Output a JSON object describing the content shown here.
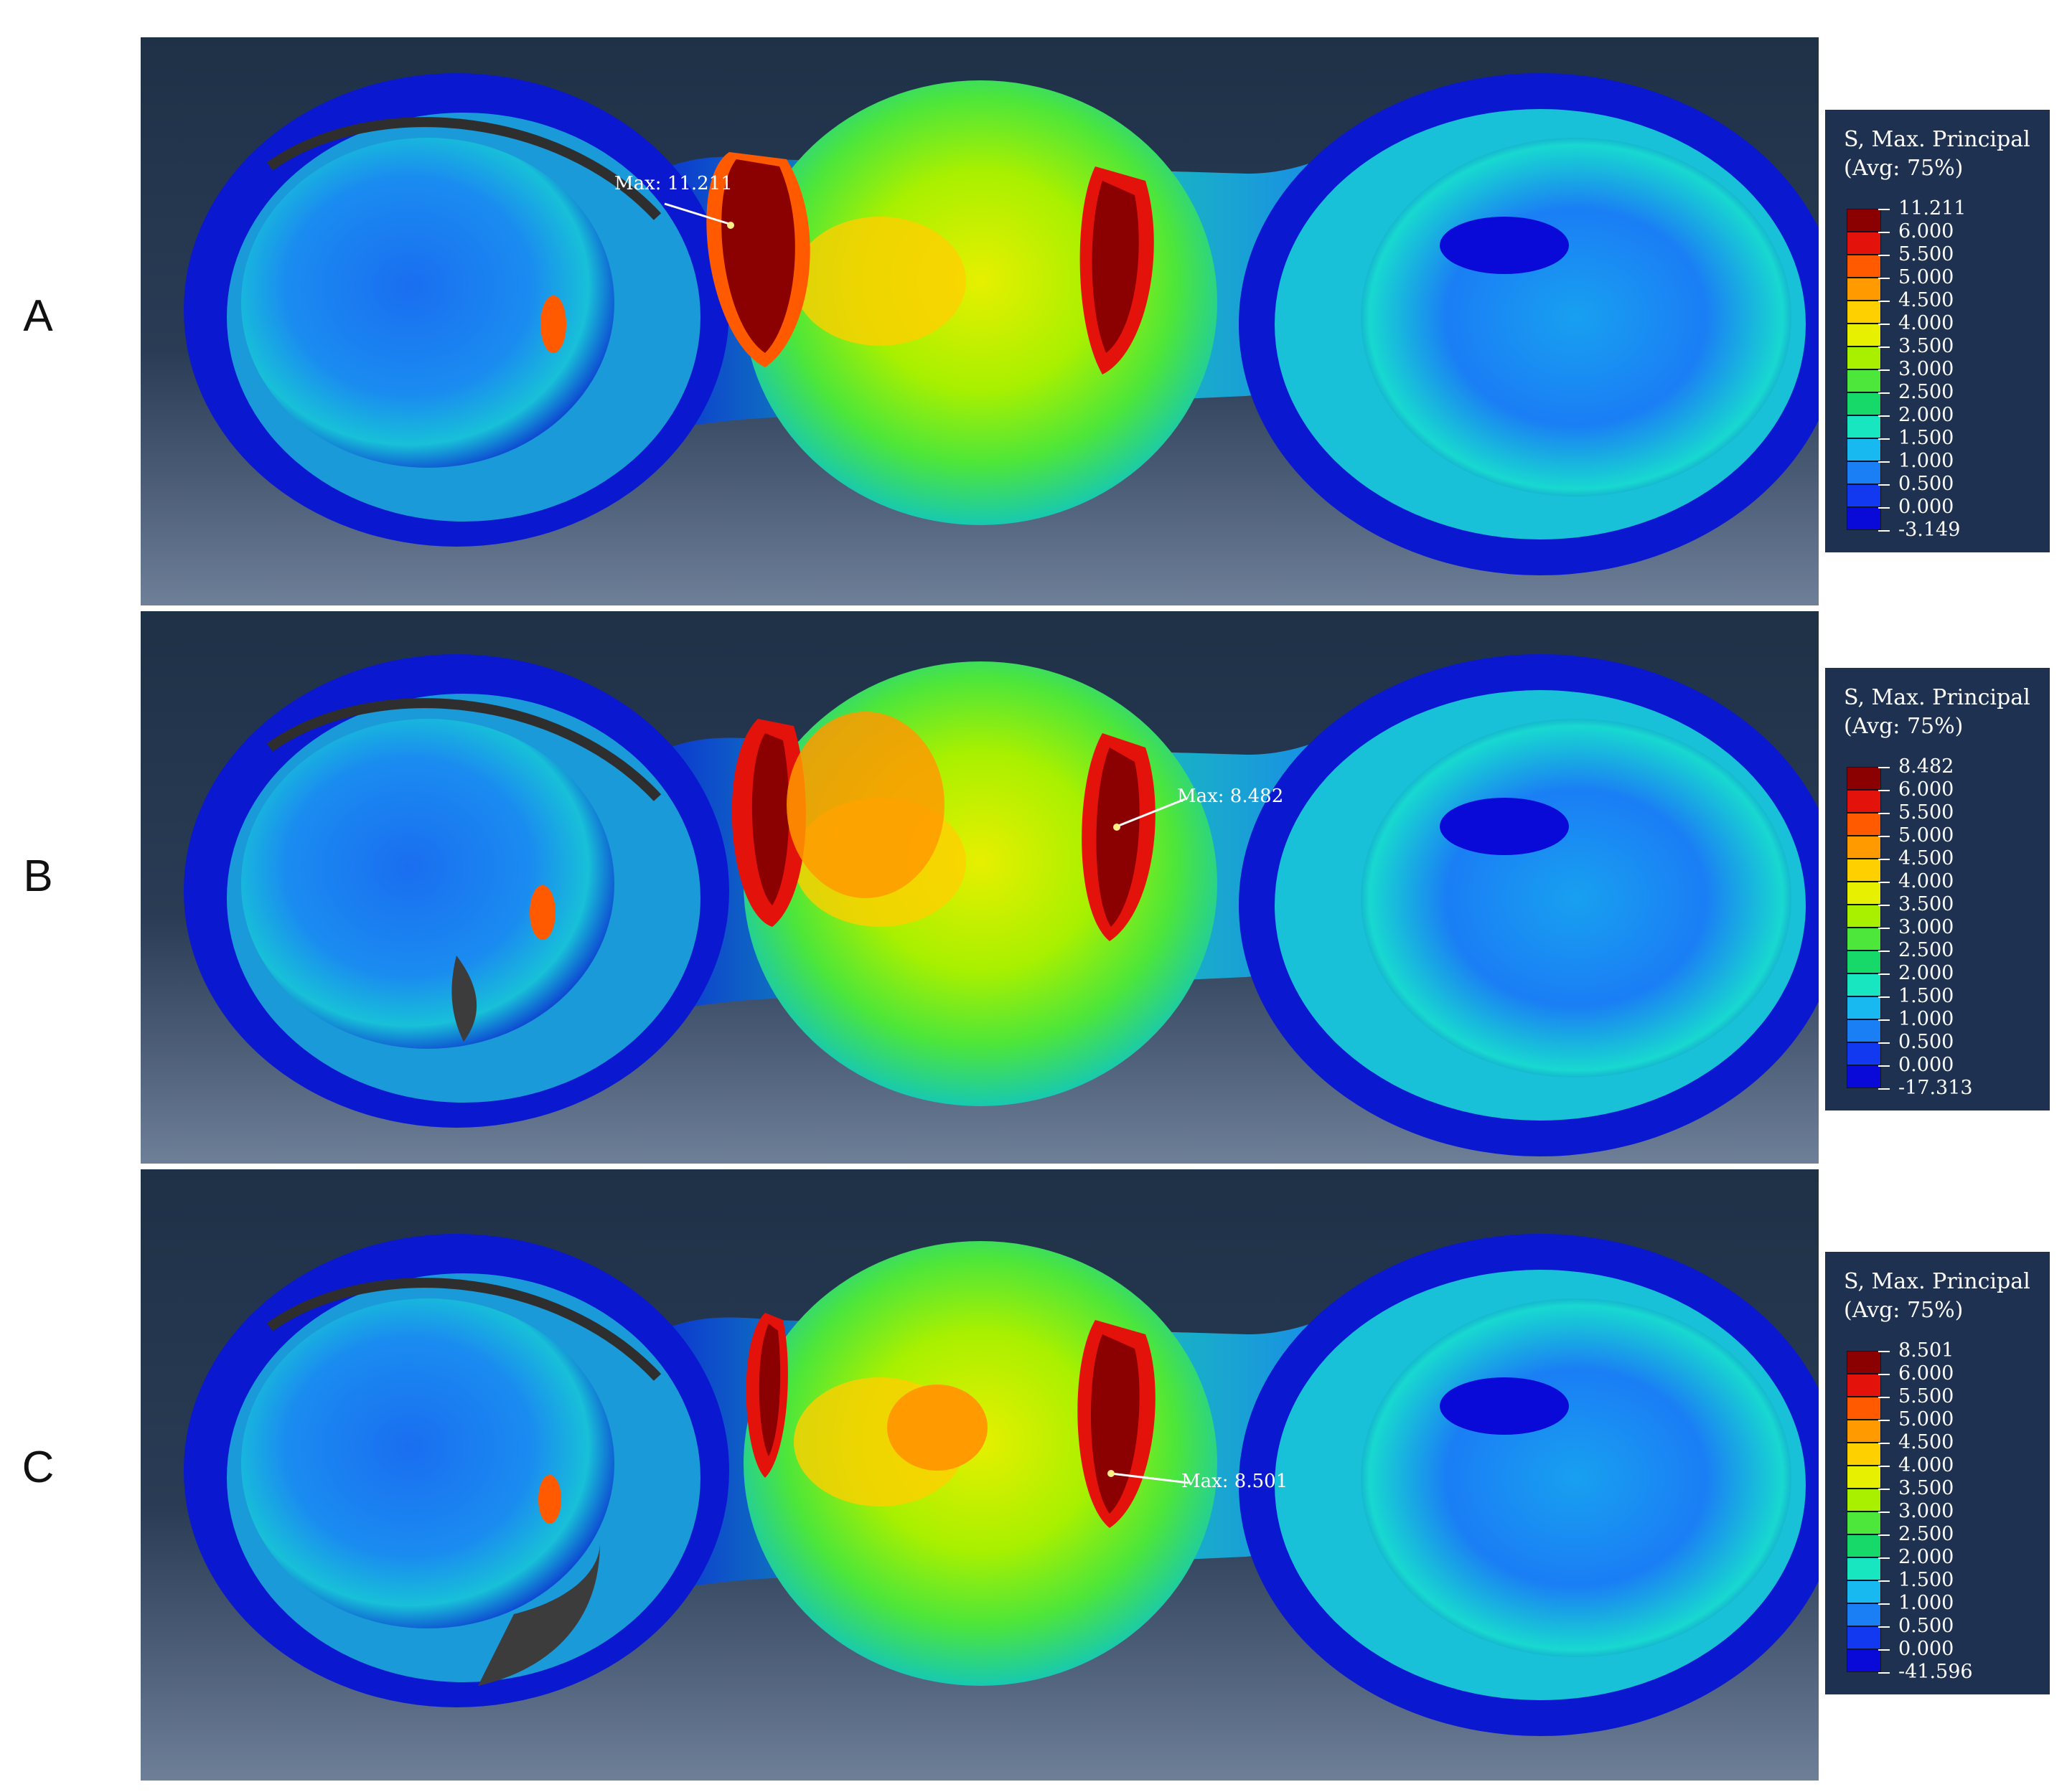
{
  "panels": [
    {
      "label": "A",
      "max_annotation": "Max: 11.211",
      "legend": {
        "title_line1": "S, Max. Principal",
        "title_line2": "(Avg: 75%)",
        "values": [
          "11.211",
          "6.000",
          "5.500",
          "5.000",
          "4.500",
          "4.000",
          "3.500",
          "3.000",
          "2.500",
          "2.000",
          "1.500",
          "1.000",
          "0.500",
          "0.000",
          "-3.149"
        ]
      }
    },
    {
      "label": "B",
      "max_annotation": "Max: 8.482",
      "legend": {
        "title_line1": "S, Max. Principal",
        "title_line2": "(Avg: 75%)",
        "values": [
          "8.482",
          "6.000",
          "5.500",
          "5.000",
          "4.500",
          "4.000",
          "3.500",
          "3.000",
          "2.500",
          "2.000",
          "1.500",
          "1.000",
          "0.500",
          "0.000",
          "-17.313"
        ]
      }
    },
    {
      "label": "C",
      "max_annotation": "Max: 8.501",
      "legend": {
        "title_line1": "S, Max. Principal",
        "title_line2": "(Avg: 75%)",
        "values": [
          "8.501",
          "6.000",
          "5.500",
          "5.000",
          "4.500",
          "4.000",
          "3.500",
          "3.000",
          "2.500",
          "2.000",
          "1.500",
          "1.000",
          "0.500",
          "0.000",
          "-41.596"
        ]
      }
    }
  ],
  "colors": {
    "contour_scale": [
      "#8b0000",
      "#e3120b",
      "#ff5a00",
      "#ff9a00",
      "#ffd000",
      "#e6f000",
      "#a8f000",
      "#4de63a",
      "#17d96a",
      "#18e6c0",
      "#18b8f0",
      "#1a7ef5",
      "#1238f0",
      "#0a0ad8",
      "#3c3c3c"
    ],
    "viewport_background": "#22344c",
    "legend_background": "#1e3150"
  }
}
